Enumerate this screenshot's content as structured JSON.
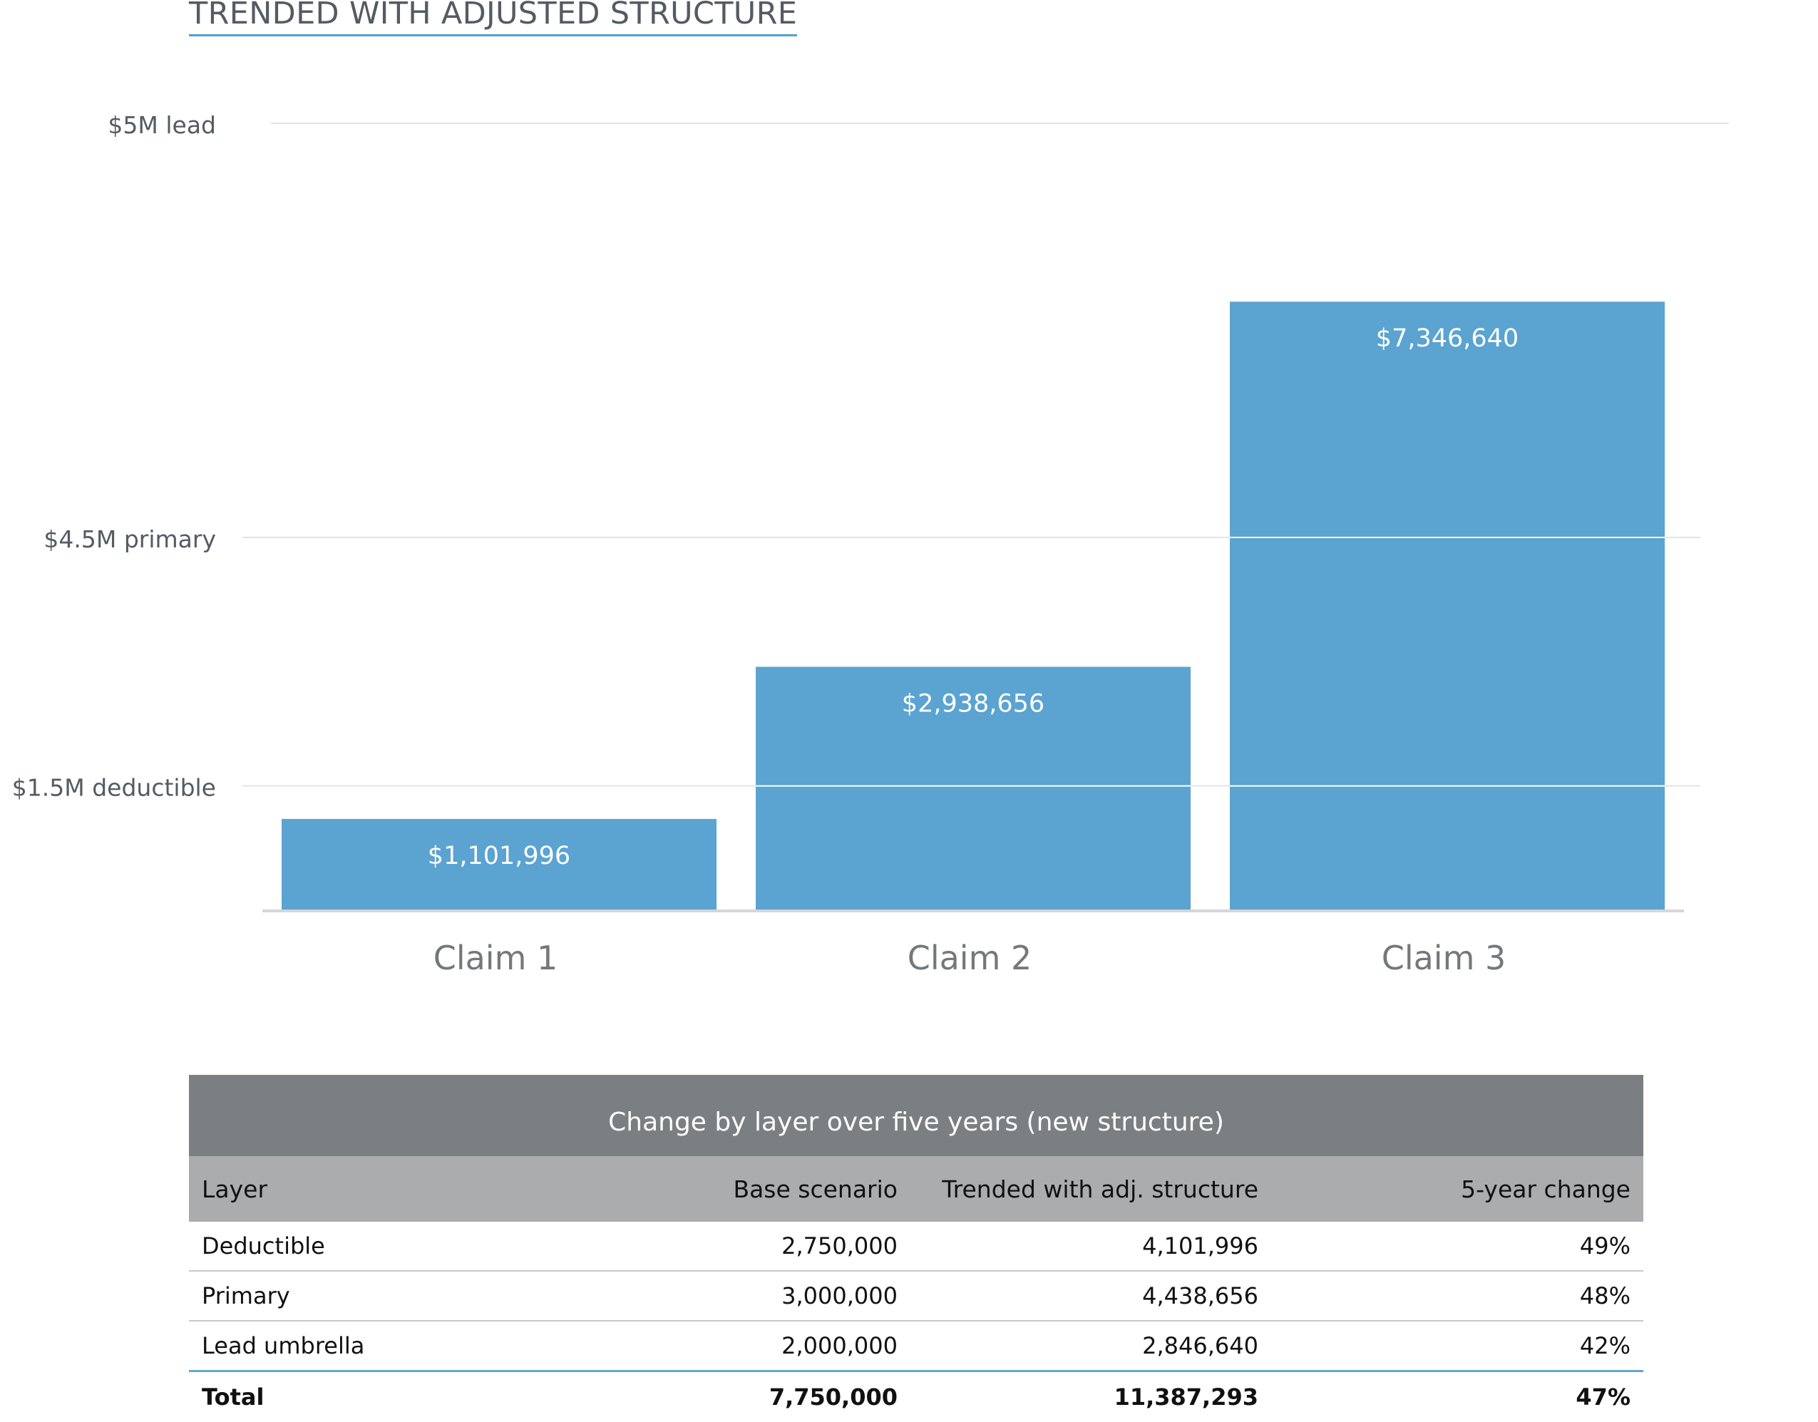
{
  "title": "TRENDED WITH ADJUSTED STRUCTURE",
  "chart_data": {
    "type": "bar",
    "categories": [
      "Claim 1",
      "Claim 2",
      "Claim 3"
    ],
    "values": [
      1101996,
      2938656,
      7346640
    ],
    "value_labels": [
      "$1,101,996",
      "$2,938,656",
      "$7,346,640"
    ],
    "reference_lines": [
      {
        "label": "$1.5M deductible",
        "value": 1500000
      },
      {
        "label": "$4.5M primary",
        "value": 4500000
      },
      {
        "label": "$5M lead",
        "value": 9500000
      }
    ],
    "ylim": [
      0,
      9500000
    ],
    "bar_color": "#5ba3d1",
    "grid": true
  },
  "table": {
    "caption": "Change by layer over five years (new structure)",
    "headers": [
      "Layer",
      "Base scenario",
      "Trended with adj. structure",
      "5-year change"
    ],
    "rows": [
      [
        "Deductible",
        "2,750,000",
        "4,101,996",
        "49%"
      ],
      [
        "Primary",
        "3,000,000",
        "4,438,656",
        "48%"
      ],
      [
        "Lead umbrella",
        "2,000,000",
        "2,846,640",
        "42%"
      ]
    ],
    "total": [
      "Total",
      "7,750,000",
      "11,387,293",
      "47%"
    ]
  }
}
